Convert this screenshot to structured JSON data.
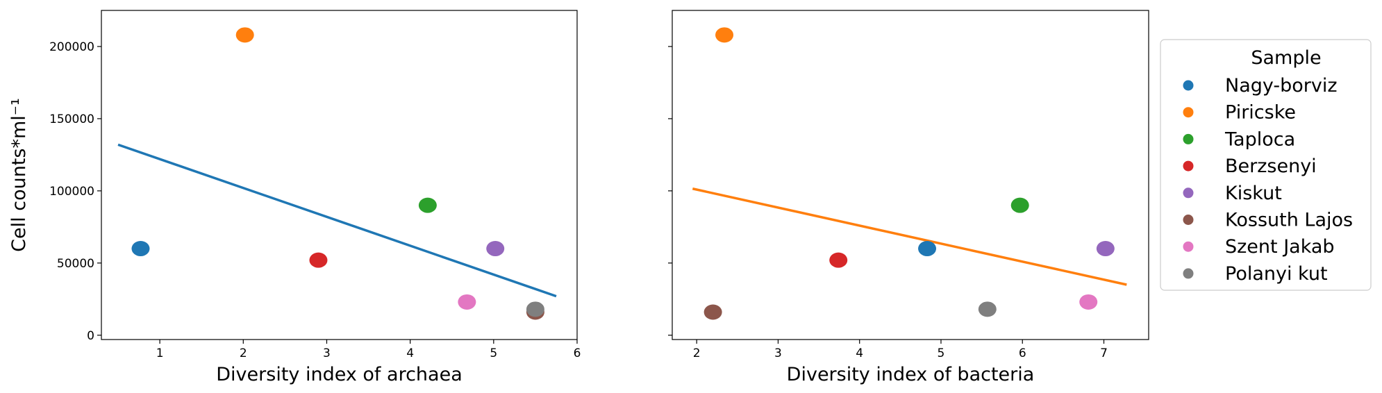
{
  "chart_data": [
    {
      "type": "scatter",
      "xlabel": "Diversity index of archaea",
      "ylabel": "Cell counts*ml⁻¹",
      "xlim": [
        0.3,
        6.0
      ],
      "ylim": [
        -3000,
        225000
      ],
      "xticks": [
        "1",
        "2",
        "3",
        "4",
        "5",
        "6"
      ],
      "yticks": [
        "0",
        "50000",
        "100000",
        "150000",
        "200000"
      ],
      "series": [
        {
          "name": "Nagy-borviz",
          "color": "#1f77b4",
          "x": 0.77,
          "y": 60000
        },
        {
          "name": "Piricske",
          "color": "#ff7f0e",
          "x": 2.02,
          "y": 208000
        },
        {
          "name": "Taploca",
          "color": "#2ca02c",
          "x": 4.21,
          "y": 90000
        },
        {
          "name": "Berzsenyi",
          "color": "#d62728",
          "x": 2.9,
          "y": 52000
        },
        {
          "name": "Kiskut",
          "color": "#9467bd",
          "x": 5.02,
          "y": 60000
        },
        {
          "name": "Kossuth Lajos",
          "color": "#8c564b",
          "x": 5.5,
          "y": 16000
        },
        {
          "name": "Szent Jakab",
          "color": "#e377c2",
          "x": 4.68,
          "y": 23000
        },
        {
          "name": "Polanyi kut",
          "color": "#7f7f7f",
          "x": 5.5,
          "y": 18000
        }
      ],
      "trendline": {
        "color": "#1f77b4",
        "x": [
          0.5,
          5.75
        ],
        "y": [
          132000,
          27000
        ]
      }
    },
    {
      "type": "scatter",
      "xlabel": "Diversity index of bacteria",
      "xlim": [
        1.7,
        7.55
      ],
      "ylim": [
        -3000,
        225000
      ],
      "xticks": [
        "2",
        "3",
        "4",
        "5",
        "6",
        "7"
      ],
      "series": [
        {
          "name": "Nagy-borviz",
          "color": "#1f77b4",
          "x": 4.83,
          "y": 60000
        },
        {
          "name": "Piricske",
          "color": "#ff7f0e",
          "x": 2.34,
          "y": 208000
        },
        {
          "name": "Taploca",
          "color": "#2ca02c",
          "x": 5.97,
          "y": 90000
        },
        {
          "name": "Berzsenyi",
          "color": "#d62728",
          "x": 3.74,
          "y": 52000
        },
        {
          "name": "Kiskut",
          "color": "#9467bd",
          "x": 7.02,
          "y": 60000
        },
        {
          "name": "Kossuth Lajos",
          "color": "#8c564b",
          "x": 2.2,
          "y": 16000
        },
        {
          "name": "Szent Jakab",
          "color": "#e377c2",
          "x": 6.81,
          "y": 23000
        },
        {
          "name": "Polanyi kut",
          "color": "#7f7f7f",
          "x": 5.57,
          "y": 18000
        }
      ],
      "trendline": {
        "color": "#ff7f0e",
        "x": [
          1.95,
          7.28
        ],
        "y": [
          101500,
          35000
        ]
      }
    }
  ],
  "legend": {
    "title": "Sample",
    "placement": "outside-right",
    "items": [
      {
        "label": "Nagy-borviz",
        "color": "#1f77b4"
      },
      {
        "label": "Piricske",
        "color": "#ff7f0e"
      },
      {
        "label": "Taploca",
        "color": "#2ca02c"
      },
      {
        "label": "Berzsenyi",
        "color": "#d62728"
      },
      {
        "label": "Kiskut",
        "color": "#9467bd"
      },
      {
        "label": "Kossuth Lajos",
        "color": "#8c564b"
      },
      {
        "label": "Szent Jakab",
        "color": "#e377c2"
      },
      {
        "label": "Polanyi kut",
        "color": "#7f7f7f"
      }
    ]
  }
}
